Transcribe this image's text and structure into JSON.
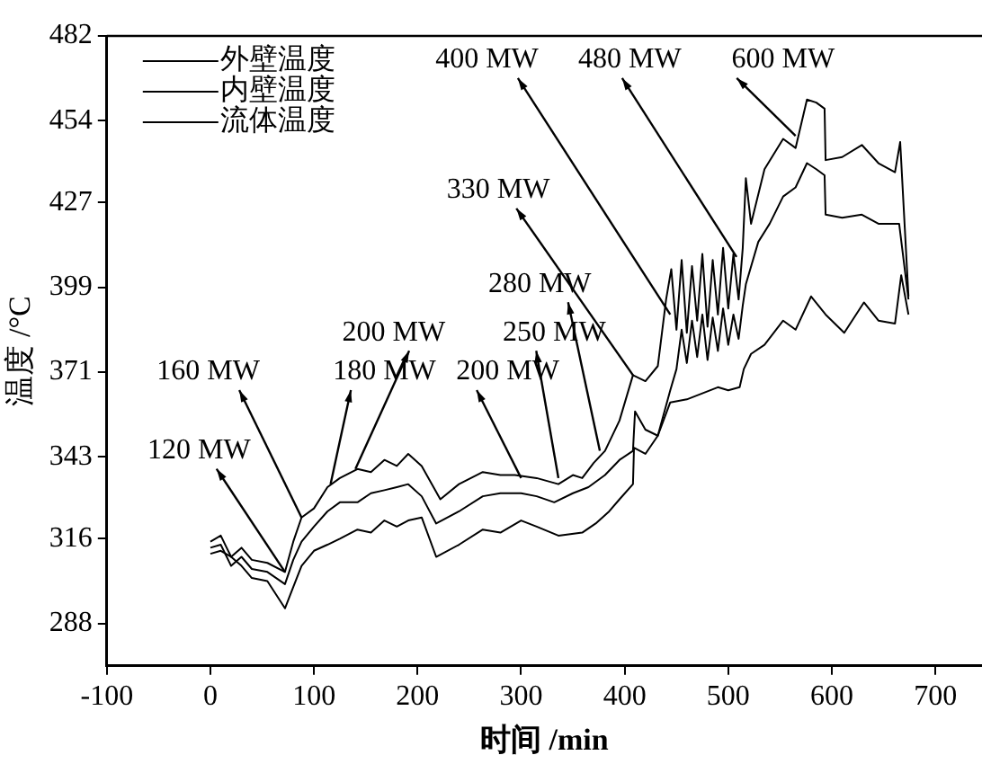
{
  "chart_data": {
    "type": "line",
    "xlabel": "时间 /min",
    "ylabel": "温度 /°C",
    "xlim": [
      -100,
      745
    ],
    "xticks": [
      -100,
      0,
      100,
      200,
      300,
      400,
      500,
      600,
      700
    ],
    "ylim": [
      274,
      482
    ],
    "yticks": [
      288,
      316,
      343,
      371,
      399,
      427,
      454,
      482
    ],
    "grid": false,
    "legend": "top left",
    "marker": "none",
    "line_style": "solid",
    "series": [
      {
        "name": "外壁温度",
        "color": "#000000",
        "x": [
          0,
          10,
          20,
          30,
          40,
          55,
          72,
          80,
          88,
          100,
          113,
          125,
          142,
          155,
          168,
          180,
          191,
          204,
          222,
          240,
          263,
          280,
          294,
          315,
          336,
          350,
          359,
          370,
          381,
          395,
          408,
          420,
          432,
          440,
          445,
          450,
          455,
          460,
          465,
          470,
          475,
          480,
          485,
          490,
          495,
          500,
          505,
          510,
          514,
          517,
          522,
          535,
          553,
          565,
          576,
          585,
          593,
          594,
          610,
          629,
          645,
          661,
          666,
          674
        ],
        "values": [
          315,
          317,
          310,
          313,
          309,
          308,
          305,
          315,
          323,
          326,
          333,
          336,
          339,
          338,
          342,
          340,
          344,
          340,
          329,
          334,
          338,
          337,
          337,
          336,
          334,
          337,
          336,
          341,
          345,
          355,
          370,
          368,
          373,
          395,
          405,
          385,
          408,
          384,
          406,
          388,
          410,
          386,
          408,
          390,
          412,
          392,
          410,
          395,
          412,
          435,
          420,
          438,
          448,
          445,
          461,
          460,
          458,
          441,
          442,
          446,
          440,
          437,
          447,
          396
        ]
      },
      {
        "name": "内壁温度",
        "color": "#000000",
        "x": [
          0,
          10,
          20,
          30,
          40,
          55,
          72,
          80,
          88,
          100,
          113,
          125,
          142,
          155,
          168,
          180,
          191,
          204,
          218,
          240,
          263,
          280,
          300,
          315,
          332,
          350,
          365,
          381,
          395,
          408,
          410,
          420,
          432,
          444,
          450,
          455,
          460,
          465,
          470,
          475,
          480,
          485,
          490,
          495,
          500,
          505,
          510,
          514,
          517,
          529,
          540,
          553,
          565,
          576,
          585,
          593,
          594,
          610,
          629,
          645,
          665,
          674
        ],
        "values": [
          313,
          314,
          307,
          310,
          306,
          305,
          301,
          309,
          315,
          320,
          325,
          328,
          328,
          331,
          332,
          333,
          334,
          330,
          321,
          325,
          330,
          331,
          331,
          330,
          328,
          331,
          333,
          337,
          342,
          345,
          358,
          352,
          350,
          365,
          372,
          385,
          374,
          388,
          376,
          390,
          375,
          389,
          378,
          392,
          380,
          390,
          382,
          393,
          400,
          414,
          420,
          429,
          432,
          440,
          438,
          436,
          423,
          422,
          423,
          420,
          420,
          395
        ]
      },
      {
        "name": "流体温度",
        "color": "#000000",
        "x": [
          0,
          10,
          20,
          30,
          40,
          55,
          72,
          80,
          88,
          100,
          113,
          125,
          142,
          155,
          168,
          180,
          191,
          204,
          218,
          240,
          263,
          280,
          300,
          315,
          336,
          359,
          372,
          385,
          395,
          408,
          409,
          420,
          432,
          444,
          460,
          475,
          490,
          500,
          511,
          515,
          522,
          535,
          553,
          565,
          580,
          594,
          612,
          631,
          645,
          661,
          667,
          674
        ],
        "values": [
          311,
          312,
          310,
          307,
          303,
          302,
          293,
          300,
          307,
          312,
          314,
          316,
          319,
          318,
          322,
          320,
          322,
          323,
          310,
          314,
          319,
          318,
          322,
          320,
          317,
          318,
          321,
          325,
          329,
          334,
          346,
          344,
          350,
          361,
          362,
          364,
          366,
          365,
          366,
          372,
          377,
          380,
          388,
          385,
          396,
          390,
          384,
          394,
          388,
          387,
          403,
          390
        ]
      }
    ],
    "annotations": [
      {
        "text": "120 MW",
        "x": 72,
        "y": 305
      },
      {
        "text": "160 MW",
        "x": 88,
        "y": 323
      },
      {
        "text": "180 MW",
        "x": 116,
        "y": 334
      },
      {
        "text": "200 MW",
        "x": 140,
        "y": 339
      },
      {
        "text": "200 MW",
        "x": 300,
        "y": 336
      },
      {
        "text": "250 MW",
        "x": 336,
        "y": 336
      },
      {
        "text": "280 MW",
        "x": 376,
        "y": 345
      },
      {
        "text": "330 MW",
        "x": 408,
        "y": 370
      },
      {
        "text": "400 MW",
        "x": 444,
        "y": 390
      },
      {
        "text": "480 MW",
        "x": 508,
        "y": 409
      },
      {
        "text": "600 MW",
        "x": 565,
        "y": 449
      }
    ]
  }
}
